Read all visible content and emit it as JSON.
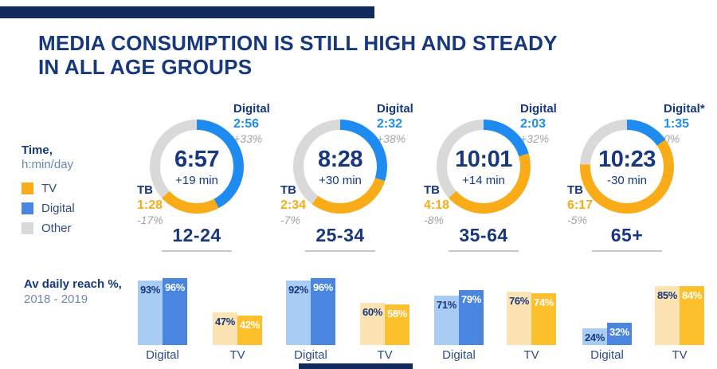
{
  "page": {
    "title_line1": "MEDIA CONSUMPTION IS STILL HIGH AND STEADY",
    "title_line2": "IN ALL AGE GROUPS"
  },
  "colors": {
    "navy": "#17377E",
    "navy_bar": "#12295E",
    "sub_navy": "#6D87AE",
    "legend_text": "#2F4C80",
    "blue": "#1E8BF0",
    "blue_2019": "#4A86E0",
    "blue_2018": "#A9CCF5",
    "orange": "#F9AC18",
    "orange_2019": "#FBC02B",
    "orange_2018": "#FBE3B4",
    "gray": "#D9D9D9",
    "gray_text": "#A3A3A3",
    "underline": "#C4C8CE"
  },
  "legend": {
    "time_title": "Time,",
    "time_unit": "h:min/day",
    "items": [
      {
        "label": "TV",
        "color_key": "orange"
      },
      {
        "label": "Digital",
        "color_key": "blue_2019"
      },
      {
        "label": "Other",
        "color_key": "gray"
      }
    ]
  },
  "reach": {
    "line1": "Av daily reach %,",
    "line2": "2018 - 2019"
  },
  "chart_data": {
    "donuts": {
      "type": "pie",
      "unit": "h:min/day",
      "segment_order": [
        "digital",
        "tv",
        "other"
      ],
      "groups": [
        {
          "age": "12-24",
          "total": "6:57",
          "total_change": "+19 min",
          "digital": {
            "label": "Digital",
            "time": "2:56",
            "change": "+33%"
          },
          "tv": {
            "label": "TB",
            "time": "1:28",
            "change": "-17%"
          }
        },
        {
          "age": "25-34",
          "total": "8:28",
          "total_change": "+30 min",
          "digital": {
            "label": "Digital",
            "time": "2:32",
            "change": "+38%"
          },
          "tv": {
            "label": "TB",
            "time": "2:34",
            "change": "-7%"
          }
        },
        {
          "age": "35-64",
          "total": "10:01",
          "total_change": "+14 min",
          "digital": {
            "label": "Digital",
            "time": "2:03",
            "change": "+32%"
          },
          "tv": {
            "label": "TB",
            "time": "4:18",
            "change": "-8%"
          }
        },
        {
          "age": "65+",
          "total": "10:23",
          "total_change": "-30 min",
          "digital": {
            "label": "Digital*",
            "time": "1:35",
            "change": "0%"
          },
          "tv": {
            "label": "TB",
            "time": "6:17",
            "change": "-5%"
          }
        }
      ]
    },
    "bars": {
      "type": "bar",
      "title": "Av daily reach %, 2018 - 2019",
      "series": [
        "2018",
        "2019"
      ],
      "unit": "%",
      "ylim": [
        0,
        100
      ],
      "axis_labels": {
        "digital": "Digital",
        "tv": "TV"
      },
      "groups": [
        {
          "age": "12-24",
          "digital": [
            93,
            96
          ],
          "tv": [
            47,
            42
          ]
        },
        {
          "age": "25-34",
          "digital": [
            92,
            96
          ],
          "tv": [
            60,
            58
          ]
        },
        {
          "age": "35-64",
          "digital": [
            71,
            79
          ],
          "tv": [
            76,
            74
          ]
        },
        {
          "age": "65+",
          "digital": [
            24,
            32
          ],
          "tv": [
            85,
            84
          ]
        }
      ]
    }
  }
}
